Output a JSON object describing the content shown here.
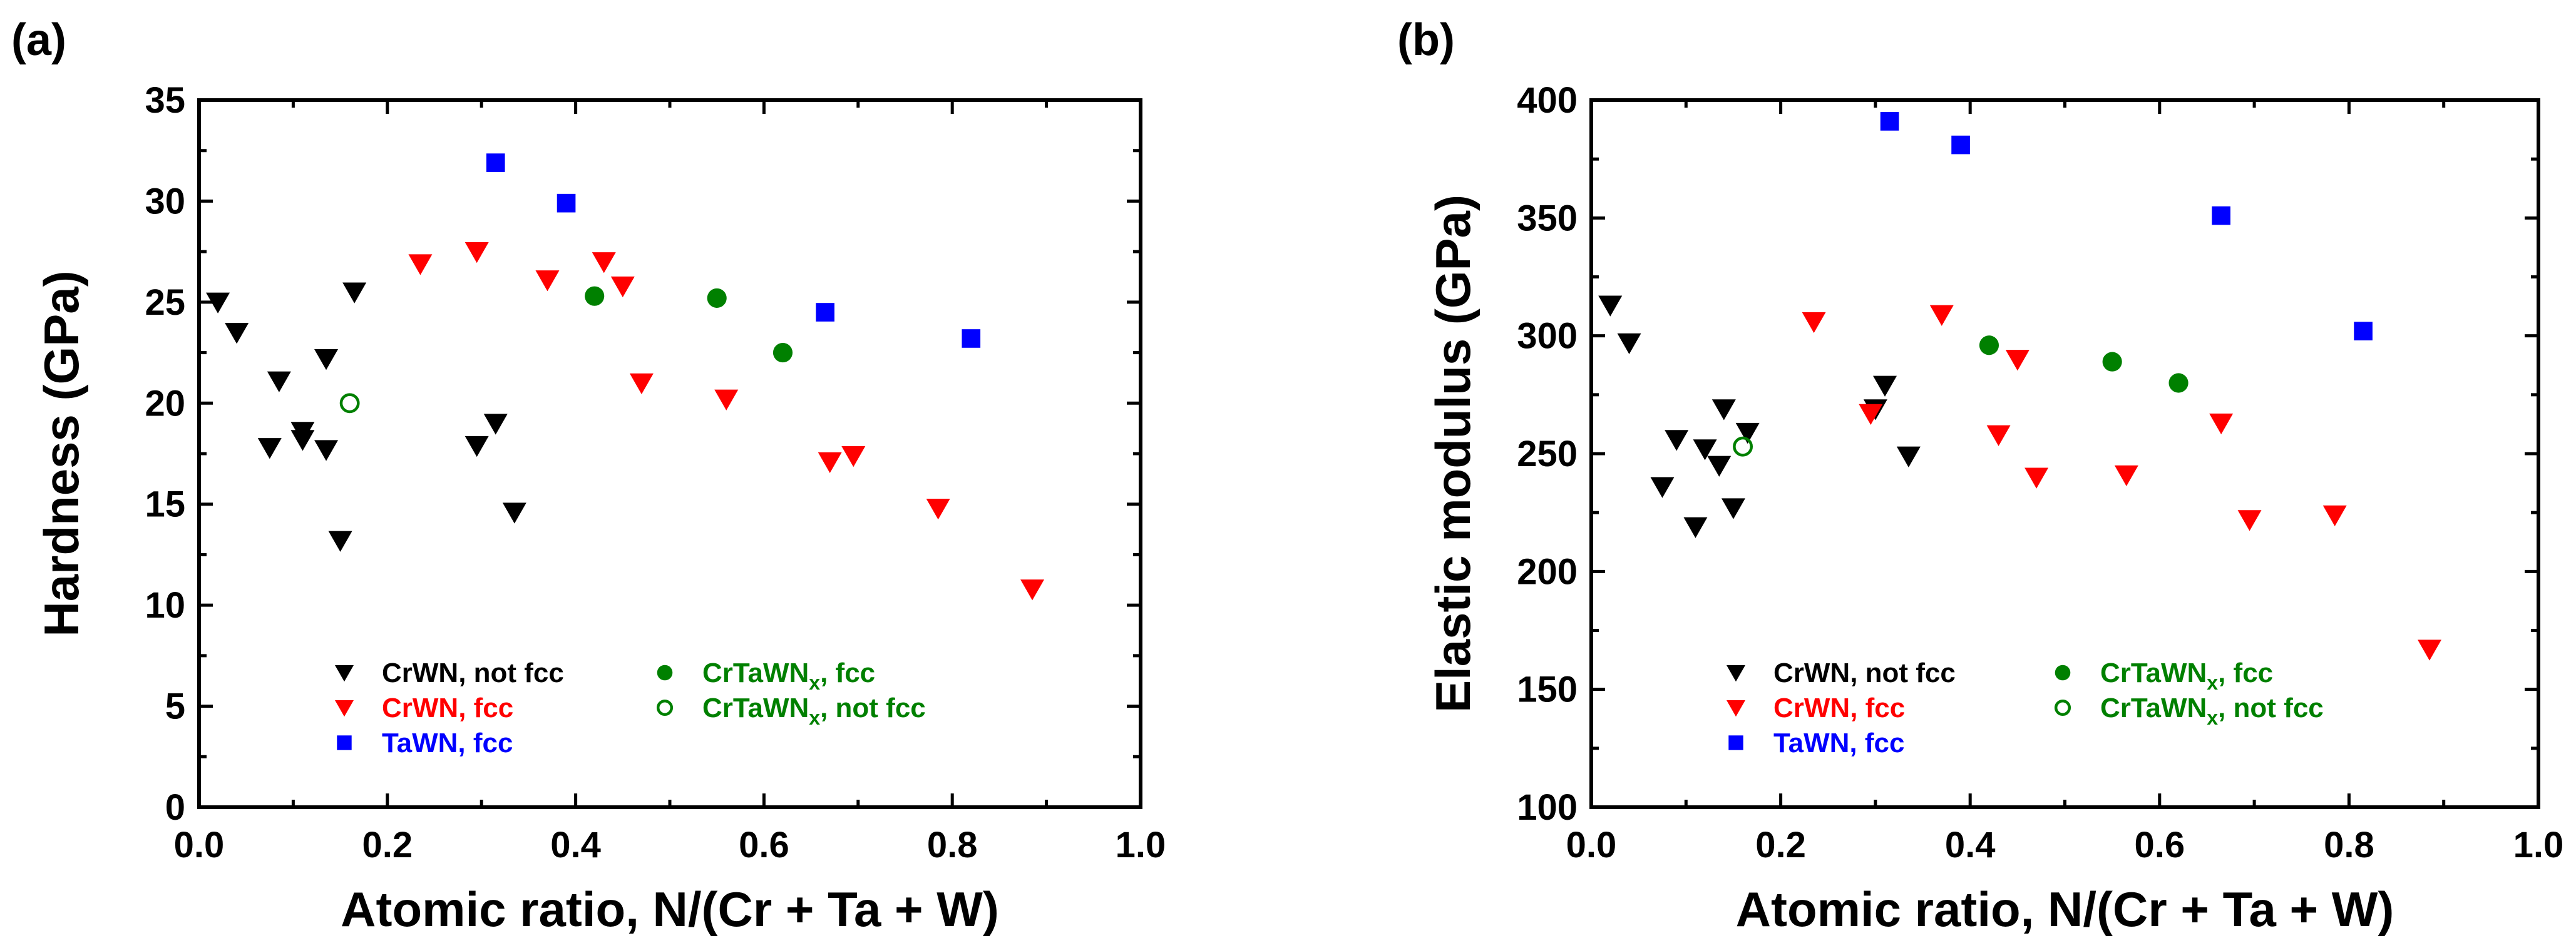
{
  "colors": {
    "black": "#000000",
    "red": "#ff0000",
    "blue": "#0000ff",
    "green": "#008000"
  },
  "chart_data": [
    {
      "panel": "(a)",
      "type": "scatter",
      "xlabel": "Atomic ratio, N/(Cr + Ta + W)",
      "ylabel": "Hardness (GPa)",
      "xlim": [
        0,
        1.0
      ],
      "ylim": [
        0,
        35
      ],
      "xticks": [
        0.0,
        0.2,
        0.4,
        0.6,
        0.8,
        1.0
      ],
      "xtick_labels": [
        "0.0",
        "0.2",
        "0.4",
        "0.6",
        "0.8",
        "1.0"
      ],
      "yticks": [
        0,
        5,
        10,
        15,
        20,
        25,
        30,
        35
      ],
      "ytick_labels": [
        "0",
        "5",
        "10",
        "15",
        "20",
        "25",
        "30",
        "35"
      ],
      "legend": [
        {
          "label": "CrWN, not fcc",
          "sub": "",
          "tail": "",
          "marker": "triangle-down",
          "color": "#000000",
          "filled": true
        },
        {
          "label": "CrWN, fcc",
          "sub": "",
          "tail": "",
          "marker": "triangle-down",
          "color": "#ff0000",
          "filled": true
        },
        {
          "label": "TaWN, fcc",
          "sub": "",
          "tail": "",
          "marker": "square",
          "color": "#0000ff",
          "filled": true
        },
        {
          "label": "CrTaWN",
          "sub": "x",
          "tail": ", fcc",
          "marker": "circle",
          "color": "#008000",
          "filled": true
        },
        {
          "label": "CrTaWN",
          "sub": "x",
          "tail": ", not fcc",
          "marker": "circle",
          "color": "#008000",
          "filled": false
        }
      ],
      "series": [
        {
          "name": "CrWN, not fcc",
          "marker": "triangle-down",
          "color": "#000000",
          "filled": true,
          "points": [
            [
              0.02,
              25.0
            ],
            [
              0.04,
              23.5
            ],
            [
              0.075,
              17.8
            ],
            [
              0.085,
              21.1
            ],
            [
              0.11,
              18.6
            ],
            [
              0.11,
              18.2
            ],
            [
              0.135,
              22.2
            ],
            [
              0.135,
              17.7
            ],
            [
              0.15,
              13.2
            ],
            [
              0.165,
              25.5
            ],
            [
              0.295,
              17.9
            ],
            [
              0.315,
              19.0
            ],
            [
              0.335,
              14.6
            ]
          ]
        },
        {
          "name": "CrWN, fcc",
          "marker": "triangle-down",
          "color": "#ff0000",
          "filled": true,
          "points": [
            [
              0.235,
              26.9
            ],
            [
              0.295,
              27.5
            ],
            [
              0.37,
              26.1
            ],
            [
              0.43,
              27.0
            ],
            [
              0.45,
              25.8
            ],
            [
              0.47,
              21.0
            ],
            [
              0.56,
              20.2
            ],
            [
              0.67,
              17.1
            ],
            [
              0.695,
              17.4
            ],
            [
              0.785,
              14.8
            ],
            [
              0.885,
              10.8
            ]
          ]
        },
        {
          "name": "TaWN, fcc",
          "marker": "square",
          "color": "#0000ff",
          "filled": true,
          "points": [
            [
              0.315,
              31.9
            ],
            [
              0.39,
              29.9
            ],
            [
              0.665,
              24.5
            ],
            [
              0.82,
              23.2
            ]
          ]
        },
        {
          "name": "CrTaWNx, fcc",
          "marker": "circle",
          "color": "#008000",
          "filled": true,
          "points": [
            [
              0.42,
              25.3
            ],
            [
              0.55,
              25.2
            ],
            [
              0.62,
              22.5
            ]
          ]
        },
        {
          "name": "CrTaWNx, not fcc",
          "marker": "circle",
          "color": "#008000",
          "filled": false,
          "points": [
            [
              0.16,
              20.0
            ]
          ]
        }
      ]
    },
    {
      "panel": "(b)",
      "type": "scatter",
      "xlabel": "Atomic ratio, N/(Cr + Ta + W)",
      "ylabel": "Elastic modulus (GPa)",
      "xlim": [
        0,
        1.0
      ],
      "ylim": [
        100,
        400
      ],
      "xticks": [
        0.0,
        0.2,
        0.4,
        0.6,
        0.8,
        1.0
      ],
      "xtick_labels": [
        "0.0",
        "0.2",
        "0.4",
        "0.6",
        "0.8",
        "1.0"
      ],
      "yticks": [
        100,
        150,
        200,
        250,
        300,
        350,
        400
      ],
      "ytick_labels": [
        "100",
        "150",
        "200",
        "250",
        "300",
        "350",
        "400"
      ],
      "legend": [
        {
          "label": "CrWN, not fcc",
          "sub": "",
          "tail": "",
          "marker": "triangle-down",
          "color": "#000000",
          "filled": true
        },
        {
          "label": "CrWN, fcc",
          "sub": "",
          "tail": "",
          "marker": "triangle-down",
          "color": "#ff0000",
          "filled": true
        },
        {
          "label": "TaWN, fcc",
          "sub": "",
          "tail": "",
          "marker": "square",
          "color": "#0000ff",
          "filled": true
        },
        {
          "label": "CrTaWN",
          "sub": "x",
          "tail": ", fcc",
          "marker": "circle",
          "color": "#008000",
          "filled": true
        },
        {
          "label": "CrTaWN",
          "sub": "x",
          "tail": ", not fcc",
          "marker": "circle",
          "color": "#008000",
          "filled": false
        }
      ],
      "series": [
        {
          "name": "CrWN, not fcc",
          "marker": "triangle-down",
          "color": "#000000",
          "filled": true,
          "points": [
            [
              0.02,
              313
            ],
            [
              0.04,
              297
            ],
            [
              0.075,
              236
            ],
            [
              0.09,
              256
            ],
            [
              0.11,
              219
            ],
            [
              0.12,
              252
            ],
            [
              0.135,
              245
            ],
            [
              0.14,
              269
            ],
            [
              0.15,
              227
            ],
            [
              0.165,
              259
            ],
            [
              0.31,
              279
            ],
            [
              0.335,
              249
            ],
            [
              0.3,
              269
            ]
          ]
        },
        {
          "name": "CrWN, fcc",
          "marker": "triangle-down",
          "color": "#ff0000",
          "filled": true,
          "points": [
            [
              0.235,
              306
            ],
            [
              0.295,
              267
            ],
            [
              0.37,
              309
            ],
            [
              0.43,
              258
            ],
            [
              0.45,
              290
            ],
            [
              0.47,
              240
            ],
            [
              0.565,
              241
            ],
            [
              0.665,
              263
            ],
            [
              0.695,
              222
            ],
            [
              0.785,
              224
            ],
            [
              0.885,
              167
            ]
          ]
        },
        {
          "name": "TaWN, fcc",
          "marker": "square",
          "color": "#0000ff",
          "filled": true,
          "points": [
            [
              0.315,
              391
            ],
            [
              0.39,
              381
            ],
            [
              0.665,
              351
            ],
            [
              0.815,
              302
            ]
          ]
        },
        {
          "name": "CrTaWNx, fcc",
          "marker": "circle",
          "color": "#008000",
          "filled": true,
          "points": [
            [
              0.42,
              296
            ],
            [
              0.55,
              289
            ],
            [
              0.62,
              280
            ]
          ]
        },
        {
          "name": "CrTaWNx, not fcc",
          "marker": "circle",
          "color": "#008000",
          "filled": false,
          "points": [
            [
              0.16,
              253
            ]
          ]
        }
      ]
    }
  ]
}
